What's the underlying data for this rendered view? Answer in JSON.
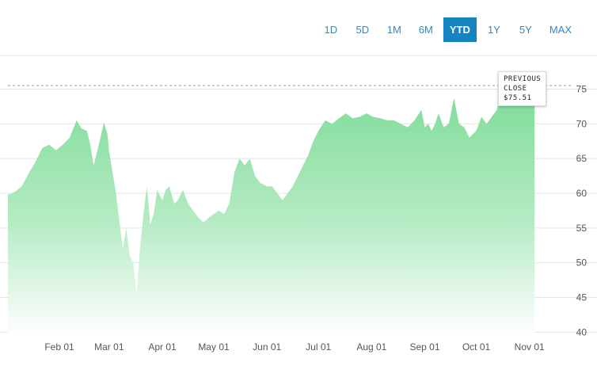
{
  "range_buttons": [
    {
      "label": "1D",
      "active": false
    },
    {
      "label": "5D",
      "active": false
    },
    {
      "label": "1M",
      "active": false
    },
    {
      "label": "6M",
      "active": false
    },
    {
      "label": "YTD",
      "active": true
    },
    {
      "label": "1Y",
      "active": false
    },
    {
      "label": "5Y",
      "active": false
    },
    {
      "label": "MAX",
      "active": false
    }
  ],
  "tooltip": {
    "line1": "PREVIOUS",
    "line2": "CLOSE",
    "value": "$75.51"
  },
  "colors": {
    "accent": "#1583bf",
    "area_top": "#7ddb98",
    "area_bottom": "#ffffff",
    "gridline": "#e4e4e4",
    "reference_line": "#999999"
  },
  "chart_data": {
    "type": "area",
    "title": "",
    "xlabel": "",
    "ylabel": "",
    "ylim": [
      40,
      77.5
    ],
    "grid": true,
    "x_ticks": [
      "Feb 01",
      "Mar 01",
      "Apr 01",
      "May 01",
      "Jun 01",
      "Jul 01",
      "Aug 01",
      "Sep 01",
      "Oct 01",
      "Nov 01"
    ],
    "y_ticks": [
      40,
      45,
      50,
      55,
      60,
      65,
      70,
      75
    ],
    "reference_line": {
      "label": "Previous Close",
      "value": 75.51
    },
    "series": [
      {
        "x": [
          "2020-01-02",
          "2020-01-06",
          "2020-01-10",
          "2020-01-14",
          "2020-01-18",
          "2020-01-22",
          "2020-01-26",
          "2020-01-30",
          "2020-02-03",
          "2020-02-07",
          "2020-02-11",
          "2020-02-14",
          "2020-02-17",
          "2020-02-19",
          "2020-02-21",
          "2020-02-24",
          "2020-02-27",
          "2020-02-29",
          "2020-03-01",
          "2020-03-03",
          "2020-03-05",
          "2020-03-07",
          "2020-03-09",
          "2020-03-11",
          "2020-03-13",
          "2020-03-15",
          "2020-03-17",
          "2020-03-19",
          "2020-03-21",
          "2020-03-23",
          "2020-03-25",
          "2020-03-27",
          "2020-03-29",
          "2020-04-01",
          "2020-04-03",
          "2020-04-05",
          "2020-04-08",
          "2020-04-10",
          "2020-04-13",
          "2020-04-16",
          "2020-04-19",
          "2020-04-22",
          "2020-04-25",
          "2020-04-28",
          "2020-05-01",
          "2020-05-04",
          "2020-05-07",
          "2020-05-10",
          "2020-05-13",
          "2020-05-16",
          "2020-05-19",
          "2020-05-22",
          "2020-05-25",
          "2020-05-28",
          "2020-06-01",
          "2020-06-04",
          "2020-06-07",
          "2020-06-10",
          "2020-06-13",
          "2020-06-16",
          "2020-06-19",
          "2020-06-22",
          "2020-06-25",
          "2020-06-28",
          "2020-07-01",
          "2020-07-05",
          "2020-07-09",
          "2020-07-13",
          "2020-07-17",
          "2020-07-21",
          "2020-07-25",
          "2020-07-29",
          "2020-08-02",
          "2020-08-06",
          "2020-08-10",
          "2020-08-14",
          "2020-08-18",
          "2020-08-22",
          "2020-08-26",
          "2020-08-30",
          "2020-09-01",
          "2020-09-03",
          "2020-09-05",
          "2020-09-07",
          "2020-09-09",
          "2020-09-12",
          "2020-09-15",
          "2020-09-18",
          "2020-09-21",
          "2020-09-24",
          "2020-09-27",
          "2020-10-01",
          "2020-10-04",
          "2020-10-07",
          "2020-10-10",
          "2020-10-13",
          "2020-10-16",
          "2020-10-19",
          "2020-10-22",
          "2020-10-25",
          "2020-10-28",
          "2020-10-31",
          "2020-11-04"
        ],
        "y": [
          59.8,
          60.2,
          61.0,
          62.8,
          64.5,
          66.5,
          67.0,
          66.2,
          67.0,
          68.0,
          70.5,
          69.3,
          69.0,
          67.0,
          64.0,
          67.0,
          70.2,
          68.5,
          66.0,
          63.0,
          60.0,
          56.0,
          52.0,
          55.0,
          51.0,
          50.0,
          45.5,
          52.0,
          57.0,
          61.0,
          55.5,
          57.0,
          60.5,
          59.0,
          60.5,
          61.0,
          58.5,
          59.0,
          60.5,
          58.5,
          57.5,
          56.5,
          55.8,
          56.5,
          57.0,
          57.5,
          57.0,
          58.5,
          63.0,
          65.0,
          64.0,
          65.0,
          62.5,
          61.5,
          61.0,
          61.0,
          60.0,
          59.0,
          60.0,
          61.0,
          62.5,
          64.0,
          65.5,
          67.5,
          69.0,
          70.5,
          70.0,
          70.8,
          71.5,
          70.8,
          71.0,
          71.5,
          71.0,
          70.8,
          70.5,
          70.5,
          70.0,
          69.5,
          70.5,
          72.0,
          69.5,
          70.0,
          69.0,
          70.0,
          71.5,
          69.5,
          70.0,
          73.7,
          70.0,
          69.5,
          68.0,
          69.0,
          71.0,
          70.0,
          71.0,
          72.0,
          75.0,
          75.51,
          75.51,
          75.51,
          75.51,
          75.51,
          75.51
        ]
      }
    ]
  }
}
